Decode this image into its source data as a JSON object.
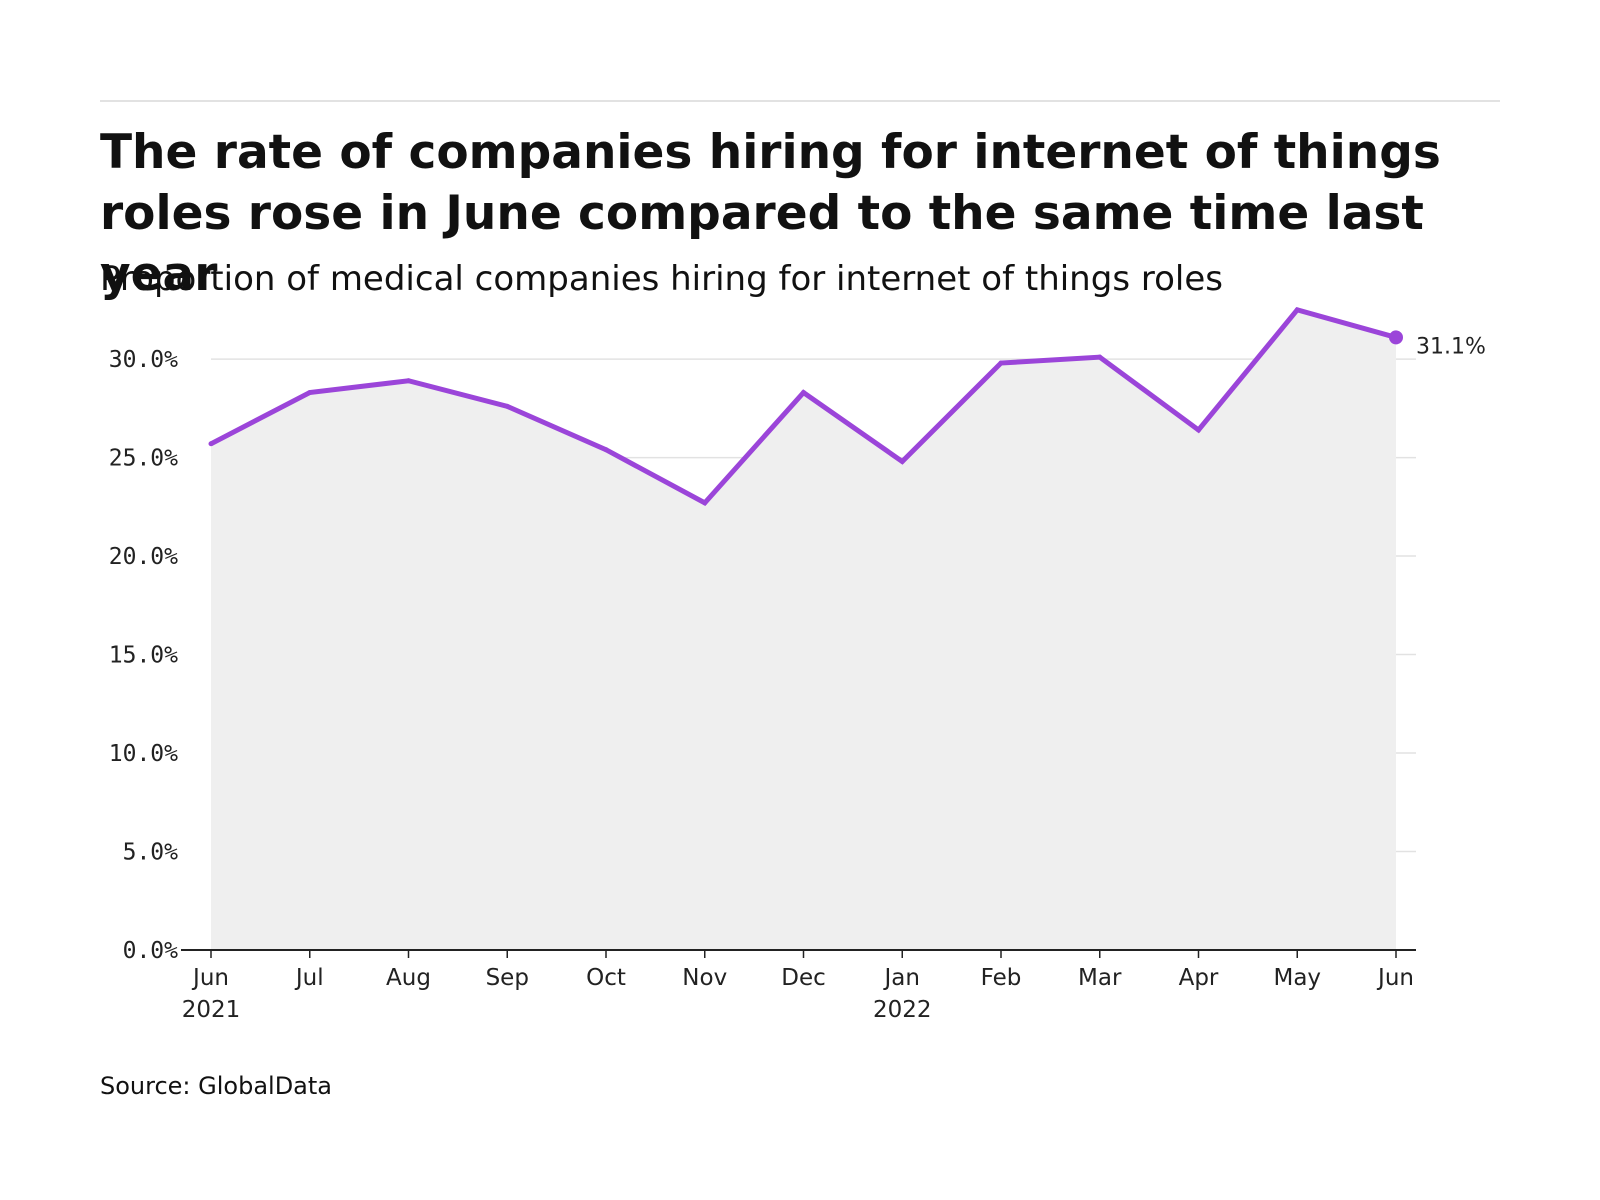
{
  "header": {
    "title": "The rate of companies hiring for internet of things roles rose in June compared to the same time last year",
    "subtitle": "Proportion of medical companies hiring for internet of things roles"
  },
  "footer": {
    "source": "Source: GlobalData"
  },
  "colors": {
    "line": "#9b45d9",
    "area": "#efefef",
    "grid": "#e2e2e2",
    "axis": "#222222"
  },
  "chart_data": {
    "type": "area",
    "title": "The rate of companies hiring for internet of things roles rose in June compared to the same time last year",
    "subtitle": "Proportion of medical companies hiring for internet of things roles",
    "xlabel": "",
    "ylabel": "",
    "ylim": [
      0,
      0.33
    ],
    "grid": true,
    "legend": "none",
    "y_ticks": [
      {
        "value": 0.0,
        "label": "0.0%"
      },
      {
        "value": 0.05,
        "label": "5.0%"
      },
      {
        "value": 0.1,
        "label": "10.0%"
      },
      {
        "value": 0.15,
        "label": "15.0%"
      },
      {
        "value": 0.2,
        "label": "20.0%"
      },
      {
        "value": 0.25,
        "label": "25.0%"
      },
      {
        "value": 0.3,
        "label": "30.0%"
      }
    ],
    "x": [
      "Jun 2021",
      "Jul 2021",
      "Aug 2021",
      "Sep 2021",
      "Oct 2021",
      "Nov 2021",
      "Dec 2021",
      "Jan 2022",
      "Feb 2022",
      "Mar 2022",
      "Apr 2022",
      "May 2022",
      "Jun 2022"
    ],
    "x_tick_labels": [
      {
        "month": "Jun",
        "year": "2021"
      },
      {
        "month": "Jul",
        "year": ""
      },
      {
        "month": "Aug",
        "year": ""
      },
      {
        "month": "Sep",
        "year": ""
      },
      {
        "month": "Oct",
        "year": ""
      },
      {
        "month": "Nov",
        "year": ""
      },
      {
        "month": "Dec",
        "year": ""
      },
      {
        "month": "Jan",
        "year": "2022"
      },
      {
        "month": "Feb",
        "year": ""
      },
      {
        "month": "Mar",
        "year": ""
      },
      {
        "month": "Apr",
        "year": ""
      },
      {
        "month": "May",
        "year": ""
      },
      {
        "month": "Jun",
        "year": ""
      }
    ],
    "series": [
      {
        "values": [
          0.257,
          0.283,
          0.289,
          0.276,
          0.254,
          0.227,
          0.283,
          0.248,
          0.298,
          0.301,
          0.264,
          0.325,
          0.311
        ]
      }
    ],
    "end_label": "31.1%"
  }
}
